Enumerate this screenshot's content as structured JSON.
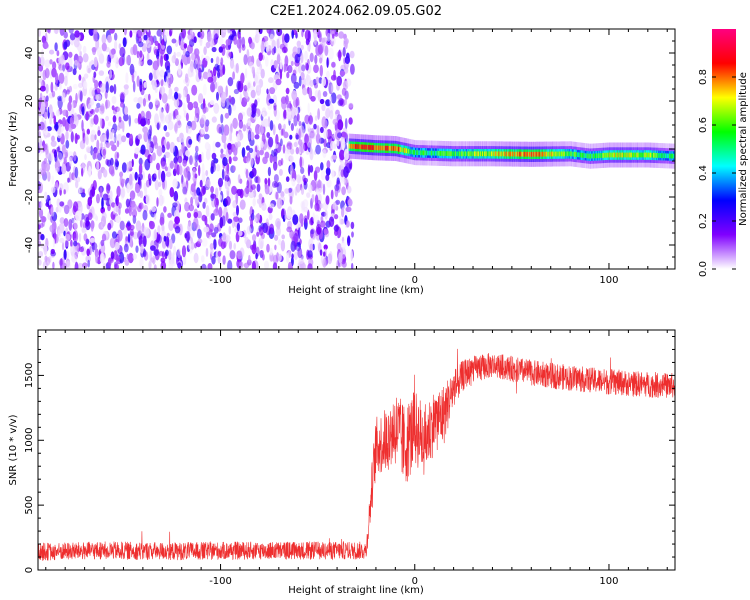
{
  "title": "C2E1.2024.062.09.05.G02",
  "chart_data": [
    {
      "type": "heatmap",
      "xlabel": "Height of straight line (km)",
      "ylabel": "Frequency (Hz)",
      "xlim": [
        -194,
        134
      ],
      "ylim": [
        -50,
        50
      ],
      "xticks": [
        -100,
        0,
        100
      ],
      "xticklabels": [
        "-100",
        "0",
        "100"
      ],
      "yticks": [
        40,
        20,
        0,
        -20,
        -40
      ],
      "yticklabels": [
        "40",
        "20",
        "0",
        "-20",
        "-40"
      ],
      "noise_region_x": [
        -194,
        -32
      ],
      "signal_line": {
        "x": [
          -34,
          -30,
          -20,
          -10,
          0,
          20,
          40,
          60,
          80,
          90,
          100,
          120,
          134
        ],
        "y": [
          1.2,
          1.0,
          0.5,
          0.2,
          -1.5,
          -2.0,
          -2.0,
          -2.2,
          -2.0,
          -3.0,
          -2.5,
          -2.5,
          -3.0
        ],
        "amplitude": [
          0.85,
          0.95,
          0.9,
          0.9,
          0.55,
          0.6,
          0.75,
          0.9,
          0.65,
          0.55,
          0.75,
          0.7,
          0.5
        ]
      },
      "colorbar": {
        "label": "Normalized spectral amplitude",
        "range": [
          0,
          1
        ],
        "ticks": [
          0.0,
          0.2,
          0.4,
          0.6,
          0.8
        ],
        "ticklabels": [
          "0.0",
          "0.2",
          "0.4",
          "0.6",
          "0.8"
        ],
        "colormap": [
          "#ffffff",
          "#8000ff",
          "#0000ff",
          "#00ffff",
          "#00ff00",
          "#ffff00",
          "#ff0000",
          "#ff0080"
        ]
      },
      "grid": false
    },
    {
      "type": "line",
      "xlabel": "Height of straight line (km)",
      "ylabel": "SNR (10 * v/v)",
      "xlim": [
        -194,
        134
      ],
      "ylim": [
        0,
        1850
      ],
      "xticks": [
        -100,
        0,
        100
      ],
      "xticklabels": [
        "-100",
        "0",
        "100"
      ],
      "yticks": [
        0,
        500,
        1000,
        1500
      ],
      "yticklabels": [
        "0",
        "500",
        "1000",
        "1500"
      ],
      "series": [
        {
          "color": "#ee2e2e",
          "x": [
            -194,
            -160,
            -120,
            -80,
            -40,
            -25,
            -22,
            -20,
            -15,
            -10,
            -5,
            0,
            5,
            10,
            15,
            20,
            25,
            30,
            40,
            60,
            80,
            100,
            120,
            134
          ],
          "y": [
            140,
            150,
            145,
            150,
            150,
            150,
            650,
            950,
            1000,
            1100,
            950,
            1100,
            1000,
            1150,
            1200,
            1400,
            1500,
            1550,
            1580,
            1520,
            1480,
            1450,
            1430,
            1420
          ],
          "noise": [
            70,
            70,
            70,
            70,
            70,
            70,
            200,
            230,
            250,
            300,
            320,
            300,
            280,
            250,
            240,
            150,
            120,
            100,
            100,
            100,
            100,
            100,
            100,
            100
          ]
        }
      ],
      "grid": false
    }
  ]
}
